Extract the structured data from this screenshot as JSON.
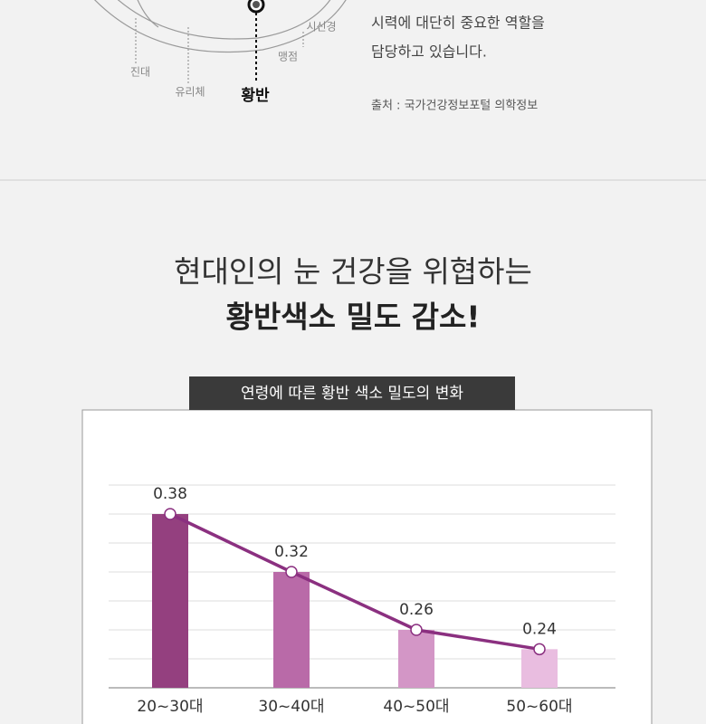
{
  "info": {
    "body": [
      "시력에 대단히 중요한 역할을",
      "담당하고 있습니다."
    ],
    "source": "출처 : 국가건강정보포털 의학정보",
    "labels": [
      "시신경",
      "맹점",
      "진대",
      "유리체"
    ],
    "macula": "황반"
  },
  "heading": [
    "현대인의 눈 건강을 위협하는",
    "황반색소 밀도 감소!"
  ],
  "chart_data": {
    "type": "bar",
    "title": "연령에 따른 황반 색소 밀도의 변화",
    "categories": [
      "20~30대",
      "30~40대",
      "40~50대",
      "50~60대"
    ],
    "values": [
      0.38,
      0.32,
      0.26,
      0.24
    ],
    "colors": [
      "#94407f",
      "#b96aa8",
      "#d396c6",
      "#e9bde0"
    ],
    "line_color": "#8b3080",
    "ylim": [
      0.2,
      0.41
    ],
    "yticks": [
      0.2,
      0.23,
      0.26,
      0.29,
      0.32,
      0.35,
      0.38,
      0.41
    ],
    "grid": true
  }
}
